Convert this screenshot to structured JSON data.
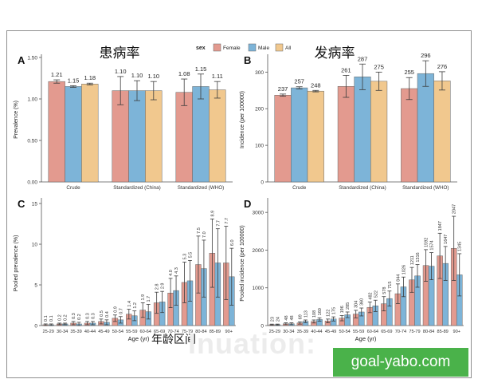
{
  "colors": {
    "female": "#e39a8f",
    "male": "#7db4d8",
    "all": "#f1c88e",
    "error_bar": "#3c3c3c",
    "badge": "#4ab24a"
  },
  "legend": {
    "title": "sex",
    "items": [
      {
        "label": "Female",
        "color": "#e39a8f"
      },
      {
        "label": "Male",
        "color": "#7db4d8"
      },
      {
        "label": "All",
        "color": "#f1c88e"
      }
    ]
  },
  "xaxis_label_cn": "年龄区间",
  "watermark": "Inuation:",
  "site_badge": "goal-yabo.com",
  "chart_data": [
    {
      "panel": "A",
      "title": "患病率",
      "type": "bar",
      "ylabel": "Prevalence (%)",
      "ylim": [
        0,
        1.5
      ],
      "yticks": [
        0,
        0.5,
        1,
        1.5
      ],
      "ytick_labels": [
        "0.00",
        "0.50",
        "1.00",
        "1.50"
      ],
      "categories": [
        "Crude",
        "Standardized (China)",
        "Standardized (WHO)"
      ],
      "series": [
        {
          "name": "Female",
          "values": [
            1.21,
            1.1,
            1.08
          ],
          "err": [
            0.02,
            0.17,
            0.16
          ],
          "labels": [
            "1.21",
            "1.10",
            "1.08"
          ]
        },
        {
          "name": "Male",
          "values": [
            1.15,
            1.1,
            1.15
          ],
          "err": [
            0.01,
            0.12,
            0.15
          ],
          "labels": [
            "1.15",
            "1.10",
            "1.15"
          ]
        },
        {
          "name": "All",
          "values": [
            1.18,
            1.1,
            1.11
          ],
          "err": [
            0.01,
            0.11,
            0.1
          ],
          "labels": [
            "1.18",
            "1.10",
            "1.11"
          ]
        }
      ]
    },
    {
      "panel": "B",
      "title": "发病率",
      "type": "bar",
      "ylabel": "Incidence (per 100000)",
      "ylim": [
        0,
        340
      ],
      "yticks": [
        0,
        100,
        200,
        300
      ],
      "ytick_labels": [
        "0",
        "100",
        "200",
        "300"
      ],
      "categories": [
        "Crude",
        "Standardized (China)",
        "Standardized (WHO)"
      ],
      "series": [
        {
          "name": "Female",
          "values": [
            237,
            261,
            255
          ],
          "err": [
            3,
            30,
            30
          ],
          "labels": [
            "237",
            "261",
            "255"
          ]
        },
        {
          "name": "Male",
          "values": [
            257,
            287,
            296
          ],
          "err": [
            3,
            35,
            35
          ],
          "labels": [
            "257",
            "287",
            "296"
          ]
        },
        {
          "name": "All",
          "values": [
            248,
            275,
            276
          ],
          "err": [
            2,
            25,
            25
          ],
          "labels": [
            "248",
            "275",
            "276"
          ]
        }
      ]
    },
    {
      "panel": "C",
      "type": "bar",
      "xlabel": "Age (yr)",
      "ylabel": "Pooled prevalence (%)",
      "ylim": [
        0,
        15.3
      ],
      "yticks": [
        0,
        5,
        10,
        15
      ],
      "ytick_labels": [
        "0",
        "5",
        "10",
        "15"
      ],
      "categories": [
        "25-29",
        "30-34",
        "35-39",
        "40-44",
        "45-49",
        "50-54",
        "55-59",
        "60-64",
        "65-69",
        "70-74",
        "75-79",
        "80-84",
        "85-89",
        "90+"
      ],
      "series": [
        {
          "name": "Female",
          "values": [
            0.1,
            0.2,
            0.3,
            0.3,
            0.5,
            0.9,
            1.4,
            1.9,
            2.8,
            4.0,
            5.3,
            7.5,
            8.9,
            7.7
          ],
          "err": [
            0.1,
            0.1,
            0.2,
            0.2,
            0.3,
            0.4,
            0.6,
            0.9,
            1.3,
            1.8,
            2.5,
            3.5,
            4.2,
            4.5
          ],
          "labels": [
            "0.1",
            "0.2",
            "0.3",
            "0.3",
            "0.5",
            "0.9",
            "1.4",
            "1.9",
            "2.8",
            "4.0",
            "5.3",
            "7.5",
            "8.9",
            "7.7"
          ]
        },
        {
          "name": "Male",
          "values": [
            0.1,
            0.2,
            0.2,
            0.3,
            0.4,
            0.7,
            1.2,
            1.7,
            2.9,
            4.3,
            5.5,
            7.0,
            7.7,
            6.0
          ],
          "err": [
            0.1,
            0.1,
            0.2,
            0.2,
            0.3,
            0.4,
            0.6,
            0.9,
            1.3,
            1.8,
            2.5,
            3.5,
            4.2,
            3.5
          ],
          "labels": [
            "0.1",
            "0.2",
            "0.2",
            "0.3",
            "0.4",
            "0.7",
            "1.2",
            "1.7",
            "2.9",
            "4.3",
            "5.5",
            "7.0",
            "7.7",
            "6.0"
          ]
        }
      ]
    },
    {
      "panel": "D",
      "type": "bar",
      "xlabel": "Age (yr)",
      "ylabel": "Pooled incidence (per 100000)",
      "ylim": [
        0,
        3300
      ],
      "yticks": [
        0,
        1000,
        2000,
        3000
      ],
      "ytick_labels": [
        "0",
        "1000",
        "2000",
        "3000"
      ],
      "categories": [
        "25-29",
        "30-34",
        "35-39",
        "40-44",
        "45-49",
        "50-54",
        "55-59",
        "60-64",
        "65-69",
        "70-74",
        "75-79",
        "80-84",
        "85-89",
        "90+"
      ],
      "series": [
        {
          "name": "Female",
          "values": [
            23,
            48,
            69,
            108,
            122,
            196,
            304,
            482,
            578,
            844,
            1211,
            1592,
            1847,
            2047
          ],
          "err": [
            15,
            25,
            30,
            40,
            50,
            70,
            100,
            140,
            190,
            260,
            330,
            420,
            600,
            850
          ],
          "labels": [
            "23",
            "48",
            "69",
            "108",
            "122",
            "196",
            "304",
            "482",
            "578",
            "844",
            "1211",
            "1592",
            "1847",
            "2047"
          ]
        },
        {
          "name": "Male",
          "values": [
            24,
            48,
            113,
            160,
            175,
            285,
            360,
            522,
            715,
            1026,
            1316,
            1574,
            1647,
            1345
          ],
          "err": [
            15,
            25,
            35,
            45,
            55,
            75,
            105,
            150,
            200,
            260,
            300,
            360,
            450,
            560
          ],
          "labels": [
            "24",
            "48",
            "113",
            "160",
            "175",
            "285",
            "360",
            "522",
            "715",
            "1026",
            "1316",
            "1574",
            "1647",
            "1345"
          ]
        }
      ]
    }
  ]
}
